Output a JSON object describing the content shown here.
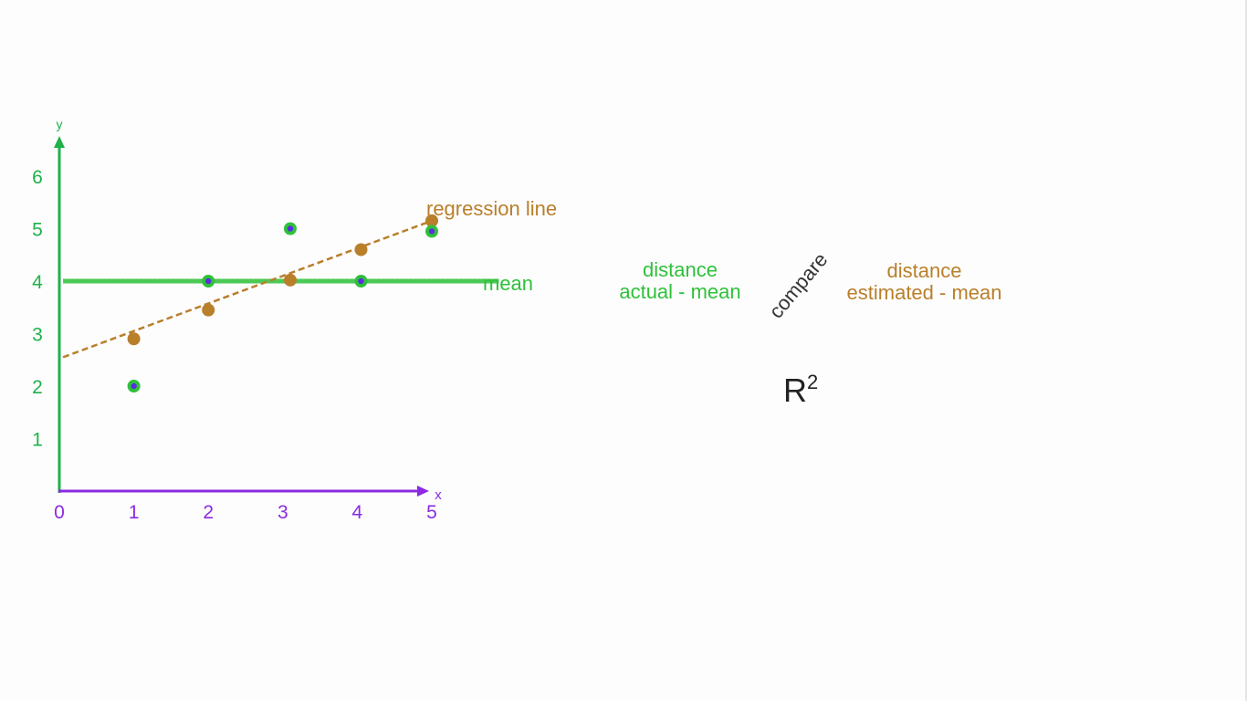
{
  "chart_data": {
    "type": "scatter",
    "title": "",
    "xlabel": "x",
    "ylabel": "y",
    "x_ticks": [
      "0",
      "1",
      "2",
      "3",
      "4",
      "5"
    ],
    "y_ticks": [
      "1",
      "2",
      "3",
      "4",
      "5",
      "6"
    ],
    "xlim": [
      0,
      5.3
    ],
    "ylim": [
      0,
      6.8
    ],
    "grid": false,
    "series": [
      {
        "kind": "actual",
        "color": "#2fc13a",
        "inner_color": "#5a2ee0",
        "points": [
          [
            1,
            2
          ],
          [
            2,
            4
          ],
          [
            3.1,
            5
          ],
          [
            4.05,
            4
          ],
          [
            5,
            4.95
          ]
        ]
      },
      {
        "kind": "estimated",
        "color": "#b97f2b",
        "points": [
          [
            1,
            2.9
          ],
          [
            2,
            3.45
          ],
          [
            3.1,
            4.02
          ],
          [
            4.05,
            4.6
          ],
          [
            5,
            5.15
          ]
        ]
      }
    ],
    "mean_line": {
      "y": 4,
      "x_range": [
        0.05,
        5.9
      ],
      "label": "mean",
      "color": "#2fc13a"
    },
    "regression_line": {
      "from": [
        0.05,
        2.55
      ],
      "to": [
        5,
        5.15
      ],
      "label": "regression line",
      "color": "#b97f2b",
      "style": "dashed"
    },
    "axis_colors": {
      "x": "#8a2be2",
      "y": "#1fb14a"
    }
  },
  "side": {
    "left_line1": "distance",
    "left_line2": "actual - mean",
    "left_color": "#2fc13a",
    "compare": "compare",
    "right_line1": "distance",
    "right_line2": "estimated - mean",
    "right_color": "#b97f2b",
    "r2_base": "R",
    "r2_sup": "2"
  }
}
